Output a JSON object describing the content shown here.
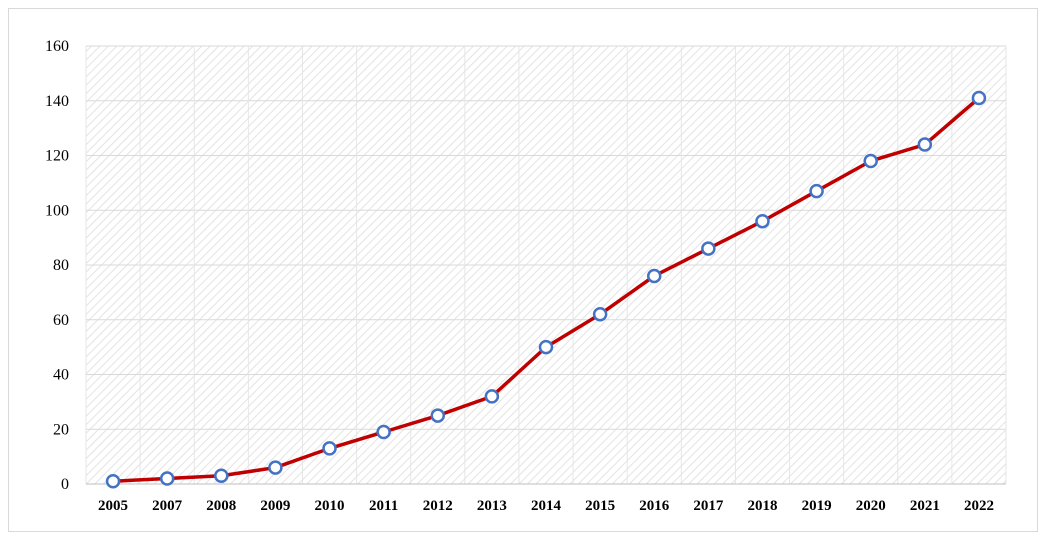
{
  "chart_data": {
    "type": "line",
    "title": "",
    "xlabel": "",
    "ylabel": "",
    "categories": [
      "2005",
      "2007",
      "2008",
      "2009",
      "2010",
      "2011",
      "2012",
      "2013",
      "2014",
      "2015",
      "2016",
      "2017",
      "2018",
      "2019",
      "2020",
      "2021",
      "2022"
    ],
    "series": [
      {
        "values": [
          1,
          2,
          3,
          6,
          13,
          19,
          25,
          32,
          50,
          62,
          76,
          86,
          96,
          107,
          118,
          124,
          141
        ],
        "line_color": "#c00000",
        "marker": "circle",
        "marker_fill": "#ffffff",
        "marker_edge": "#4472c4"
      }
    ],
    "ylim": [
      0,
      160
    ],
    "yticks": [
      "0",
      "20",
      "40",
      "60",
      "80",
      "100",
      "120",
      "140",
      "160"
    ],
    "grid": true,
    "plot_area_pattern": "diagonal-hatch",
    "legend": "none"
  }
}
